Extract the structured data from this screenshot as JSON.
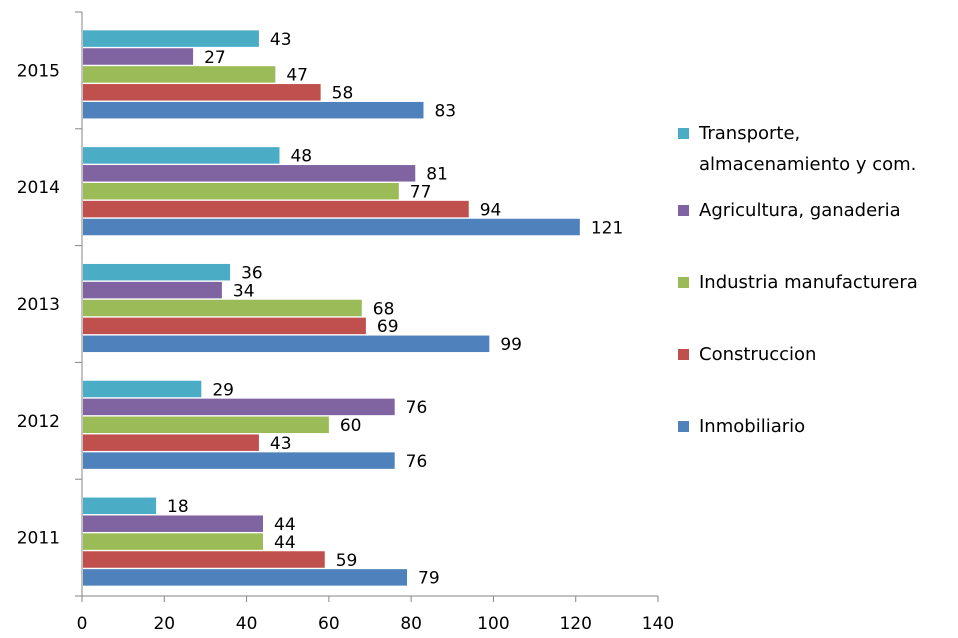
{
  "chart_data": {
    "type": "bar",
    "orientation": "horizontal",
    "categories": [
      "2011",
      "2012",
      "2013",
      "2014",
      "2015"
    ],
    "series": [
      {
        "name": "Inmobiliario",
        "color": "#4F81BD",
        "values": [
          79,
          76,
          99,
          121,
          83
        ]
      },
      {
        "name": "Construccion",
        "color": "#C0504D",
        "values": [
          59,
          43,
          69,
          94,
          58
        ]
      },
      {
        "name": "Industria manufacturera",
        "color": "#9BBB59",
        "values": [
          44,
          60,
          68,
          77,
          47
        ]
      },
      {
        "name": "Agricultura, ganaderia",
        "color": "#8064A2",
        "values": [
          44,
          76,
          34,
          81,
          27
        ]
      },
      {
        "name": "Transporte, almacenamiento y com.",
        "legend_lines": [
          "Transporte,",
          "almacenamiento y com."
        ],
        "color": "#4BACC6",
        "values": [
          18,
          29,
          36,
          48,
          43
        ]
      }
    ],
    "xlim": [
      0,
      140
    ],
    "xticks": [
      0,
      20,
      40,
      60,
      80,
      100,
      120,
      140
    ],
    "data_labels": true,
    "grid": false,
    "legend_position": "right",
    "legend_order": [
      "Transporte, almacenamiento y com.",
      "Agricultura, ganaderia",
      "Industria manufacturera",
      "Construccion",
      "Inmobiliario"
    ],
    "title": "",
    "xlabel": "",
    "ylabel": ""
  }
}
